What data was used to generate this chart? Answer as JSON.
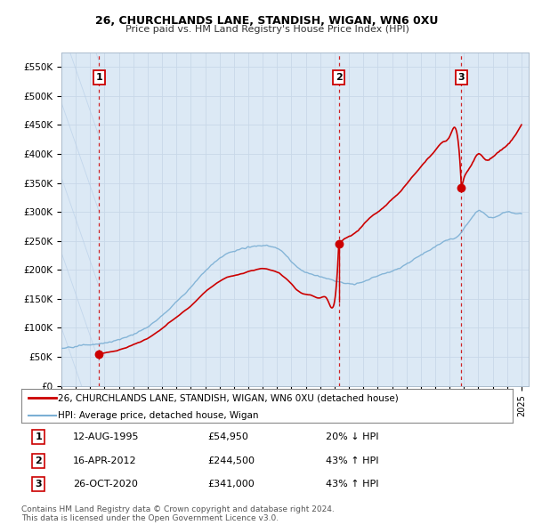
{
  "title1": "26, CHURCHLANDS LANE, STANDISH, WIGAN, WN6 0XU",
  "title2": "Price paid vs. HM Land Registry's House Price Index (HPI)",
  "xlim_start": 1993.0,
  "xlim_end": 2025.5,
  "ylim": [
    0,
    575000
  ],
  "yticks": [
    0,
    50000,
    100000,
    150000,
    200000,
    250000,
    300000,
    350000,
    400000,
    450000,
    500000,
    550000
  ],
  "ytick_labels": [
    "£0",
    "£50K",
    "£100K",
    "£150K",
    "£200K",
    "£250K",
    "£300K",
    "£350K",
    "£400K",
    "£450K",
    "£500K",
    "£550K"
  ],
  "sale_color": "#cc0000",
  "hpi_color": "#7bafd4",
  "background_color": "#dce9f5",
  "hatch_bg_color": "#dce9f5",
  "sale_dates_num": [
    1995.617,
    2012.292,
    2020.825
  ],
  "sale_prices": [
    54950,
    244500,
    341000
  ],
  "sale_labels": [
    "1",
    "2",
    "3"
  ],
  "vline_color": "#cc0000",
  "legend_label_sales": "26, CHURCHLANDS LANE, STANDISH, WIGAN, WN6 0XU (detached house)",
  "legend_label_hpi": "HPI: Average price, detached house, Wigan",
  "table_rows": [
    [
      "1",
      "12-AUG-1995",
      "£54,950",
      "20% ↓ HPI"
    ],
    [
      "2",
      "16-APR-2012",
      "£244,500",
      "43% ↑ HPI"
    ],
    [
      "3",
      "26-OCT-2020",
      "£341,000",
      "43% ↑ HPI"
    ]
  ],
  "footnote": "Contains HM Land Registry data © Crown copyright and database right 2024.\nThis data is licensed under the Open Government Licence v3.0.",
  "hpi_kp_x": [
    1993,
    1993.5,
    1994,
    1994.5,
    1995,
    1995.5,
    1996,
    1996.5,
    1997,
    1997.5,
    1998,
    1998.5,
    1999,
    1999.5,
    2000,
    2000.5,
    2001,
    2001.5,
    2002,
    2002.5,
    2003,
    2003.5,
    2004,
    2004.5,
    2005,
    2005.5,
    2006,
    2006.5,
    2007,
    2007.5,
    2008,
    2008.5,
    2009,
    2009.5,
    2010,
    2010.5,
    2011,
    2011.5,
    2012,
    2012.5,
    2013,
    2013.5,
    2014,
    2014.5,
    2015,
    2015.5,
    2016,
    2016.5,
    2017,
    2017.5,
    2018,
    2018.5,
    2019,
    2019.5,
    2020,
    2020.5,
    2021,
    2021.5,
    2022,
    2022.5,
    2023,
    2023.5,
    2024,
    2024.5,
    2025
  ],
  "hpi_kp_y": [
    65000,
    66000,
    68000,
    70000,
    71000,
    72000,
    74000,
    76000,
    80000,
    84000,
    89000,
    95000,
    102000,
    111000,
    121000,
    133000,
    145000,
    157000,
    170000,
    185000,
    198000,
    210000,
    220000,
    228000,
    232000,
    236000,
    239000,
    241000,
    242000,
    241000,
    237000,
    228000,
    214000,
    203000,
    196000,
    192000,
    188000,
    185000,
    181000,
    178000,
    176000,
    177000,
    180000,
    185000,
    190000,
    194000,
    198000,
    203000,
    210000,
    218000,
    226000,
    233000,
    240000,
    248000,
    253000,
    256000,
    272000,
    288000,
    302000,
    295000,
    290000,
    295000,
    300000,
    298000,
    298000
  ],
  "red_kp_x": [
    1995.617,
    1996,
    1996.5,
    1997,
    1997.5,
    1998,
    1998.5,
    1999,
    1999.5,
    2000,
    2000.5,
    2001,
    2001.5,
    2002,
    2002.5,
    2003,
    2003.5,
    2004,
    2004.5,
    2005,
    2005.5,
    2006,
    2006.5,
    2007,
    2007.5,
    2008,
    2008.5,
    2009,
    2009.5,
    2010,
    2010.5,
    2011,
    2011.5,
    2012,
    2012.292,
    2012.5,
    2013,
    2013.5,
    2014,
    2014.5,
    2015,
    2015.5,
    2016,
    2016.5,
    2017,
    2017.5,
    2018,
    2018.5,
    2019,
    2019.5,
    2020,
    2020.5,
    2020.825,
    2021,
    2021.5,
    2022,
    2022.5,
    2023,
    2023.5,
    2024,
    2024.5,
    2025
  ],
  "red_kp_y": [
    54950,
    57000,
    59000,
    62000,
    66000,
    71000,
    76000,
    82000,
    90000,
    99000,
    109000,
    118000,
    128000,
    138000,
    150000,
    162000,
    172000,
    180000,
    187000,
    190000,
    193000,
    197000,
    200000,
    202000,
    200000,
    196000,
    188000,
    176000,
    163000,
    158000,
    155000,
    152000,
    149000,
    146000,
    244500,
    250000,
    258000,
    265000,
    278000,
    291000,
    300000,
    310000,
    322000,
    333000,
    348000,
    363000,
    378000,
    392000,
    406000,
    420000,
    430000,
    437000,
    341000,
    358000,
    380000,
    400000,
    390000,
    395000,
    405000,
    415000,
    430000,
    450000
  ]
}
